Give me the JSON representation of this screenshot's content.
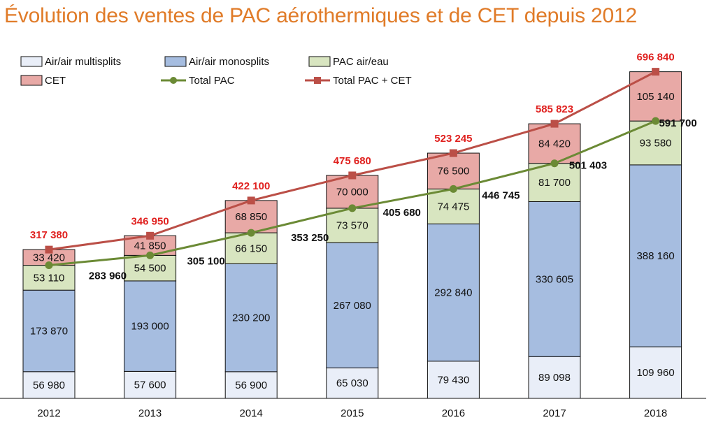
{
  "chart_data": {
    "type": "bar",
    "stacked": true,
    "title": "Évolution des ventes de PAC aérothermiques et de CET depuis 2012",
    "xlabel": "",
    "ylabel": "",
    "ylim": [
      0,
      760000
    ],
    "grid": false,
    "legend_position": "top",
    "categories": [
      "2012",
      "2013",
      "2014",
      "2015",
      "2016",
      "2017",
      "2018"
    ],
    "series": [
      {
        "name": "Air/air multisplits",
        "color": "#e9eef8",
        "values": [
          56980,
          57600,
          56900,
          65030,
          79430,
          89098,
          109960
        ],
        "labels": [
          "56 980",
          "57 600",
          "56 900",
          "65 030",
          "79 430",
          "89 098",
          "109 960"
        ]
      },
      {
        "name": "Air/air monosplits",
        "color": "#a6bde0",
        "values": [
          173870,
          193000,
          230200,
          267080,
          292840,
          330605,
          388160
        ],
        "labels": [
          "173 870",
          "193 000",
          "230 200",
          "267 080",
          "292 840",
          "330 605",
          "388 160"
        ]
      },
      {
        "name": "PAC air/eau",
        "color": "#d8e5c0",
        "values": [
          53110,
          54500,
          66150,
          73570,
          74475,
          81700,
          93580
        ],
        "labels": [
          "53 110",
          "54 500",
          "66 150",
          "73 570",
          "74 475",
          "81 700",
          "93 580"
        ]
      },
      {
        "name": "CET",
        "color": "#e8a9a6",
        "values": [
          33420,
          41850,
          68850,
          70000,
          76500,
          84420,
          105140
        ],
        "labels": [
          "33 420",
          "41 850",
          "68 850",
          "70 000",
          "76 500",
          "84 420",
          "105 140"
        ]
      }
    ],
    "lines": [
      {
        "name": "Total PAC",
        "color": "#6b8a35",
        "marker": "circle",
        "values": [
          283960,
          305100,
          353250,
          405680,
          446745,
          501403,
          591700
        ],
        "labels": [
          "283 960",
          "305 100",
          "353 250",
          "405 680",
          "446 745",
          "501 403",
          "591 700"
        ],
        "label_color": "#111111"
      },
      {
        "name": "Total PAC + CET",
        "color": "#bb4f47",
        "marker": "square",
        "values": [
          317380,
          346950,
          422100,
          475680,
          523245,
          585823,
          696840
        ],
        "labels": [
          "317 380",
          "346 950",
          "422 100",
          "475 680",
          "523 245",
          "585 823",
          "696 840"
        ],
        "label_color": "#e0211f"
      }
    ]
  }
}
